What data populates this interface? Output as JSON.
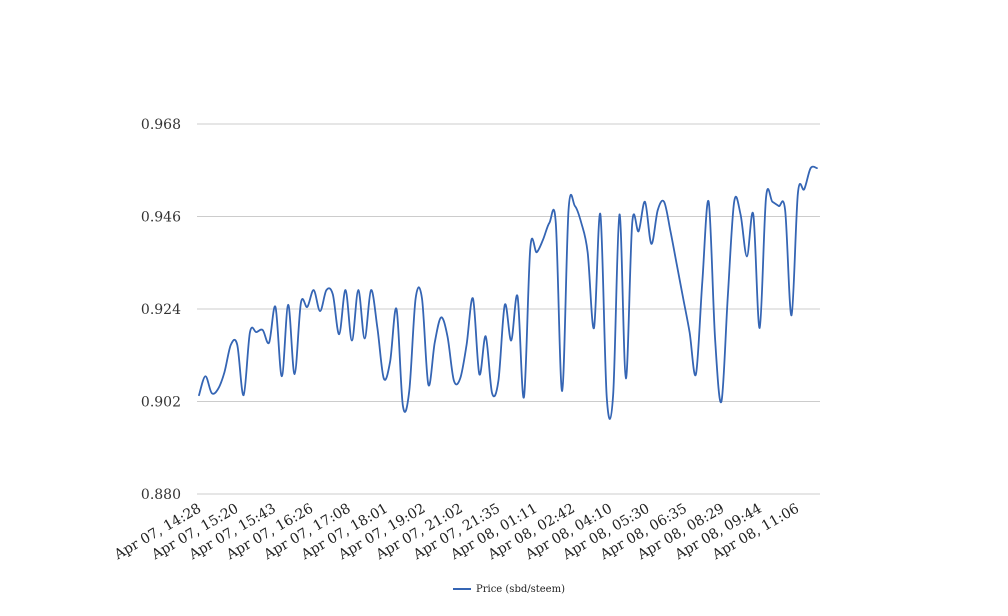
{
  "chart_data": {
    "type": "line",
    "title": "",
    "xlabel": "",
    "ylabel": "",
    "ylim": [
      0.88,
      0.968
    ],
    "yticks": [
      "0.880",
      "0.902",
      "0.924",
      "0.946",
      "0.968"
    ],
    "ytick_values": [
      0.88,
      0.902,
      0.924,
      0.946,
      0.968
    ],
    "xtick_labels": [
      "Apr 07, 14:28",
      "Apr 07, 15:20",
      "Apr 07, 15:43",
      "Apr 07, 16:26",
      "Apr 07, 17:08",
      "Apr 07, 18:01",
      "Apr 07, 19:02",
      "Apr 07, 21:02",
      "Apr 07, 21:35",
      "Apr 08, 01:11",
      "Apr 08, 02:42",
      "Apr 08, 04:10",
      "Apr 08, 05:30",
      "Apr 08, 06:35",
      "Apr 08, 08:29",
      "Apr 08, 09:44",
      "Apr 08, 11:06"
    ],
    "grid": true,
    "legend": "bottom",
    "colors": {
      "series": "#3565b4",
      "grid": "#cccccc",
      "text": "#333333"
    },
    "series": [
      {
        "name": "Price (sbd/steem)",
        "values": [
          0.9035,
          0.908,
          0.904,
          0.905,
          0.909,
          0.9155,
          0.9155,
          0.9035,
          0.9185,
          0.9185,
          0.919,
          0.916,
          0.9245,
          0.908,
          0.925,
          0.9085,
          0.9255,
          0.9245,
          0.9285,
          0.9235,
          0.9285,
          0.9275,
          0.918,
          0.9285,
          0.9165,
          0.9285,
          0.917,
          0.9285,
          0.9195,
          0.9075,
          0.9115,
          0.924,
          0.901,
          0.9045,
          0.9265,
          0.9265,
          0.906,
          0.916,
          0.922,
          0.9175,
          0.907,
          0.9075,
          0.9155,
          0.9265,
          0.9085,
          0.9175,
          0.904,
          0.907,
          0.925,
          0.9165,
          0.927,
          0.903,
          0.9385,
          0.9375,
          0.9405,
          0.9445,
          0.9445,
          0.9045,
          0.9475,
          0.9485,
          0.9445,
          0.9375,
          0.9195,
          0.9465,
          0.903,
          0.9035,
          0.9465,
          0.9075,
          0.9445,
          0.9425,
          0.9495,
          0.9395,
          0.9475,
          0.9495,
          0.9425,
          0.9345,
          0.9265,
          0.9185,
          0.9085,
          0.9305,
          0.9495,
          0.917,
          0.902,
          0.927,
          0.9495,
          0.9465,
          0.9365,
          0.9465,
          0.9195,
          0.9505,
          0.9495,
          0.9485,
          0.9475,
          0.9225,
          0.9515,
          0.9525,
          0.9575,
          0.9575
        ]
      }
    ]
  }
}
